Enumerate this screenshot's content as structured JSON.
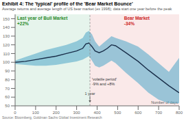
{
  "chart_data": {
    "type": "line",
    "title": "Exhibit 4: The 'typical' profile of the 'Bear Market Bounce'",
    "subtitle": "Average returns and average length of US bear market (ex 1998); data start one year before the peak",
    "source": "Source: Bloomberg, Goldman Sachs Global Investment Research",
    "xlabel": "Number of days",
    "x": [
      0,
      50,
      100,
      150,
      200,
      250,
      300,
      330,
      345,
      360,
      375,
      390,
      410,
      430,
      450,
      470,
      490,
      540,
      600,
      650,
      700,
      750,
      800
    ],
    "xlim": [
      0,
      800
    ],
    "xticks": [
      0,
      100,
      200,
      300,
      400,
      500,
      600,
      700,
      800
    ],
    "ylim": [
      50,
      155
    ],
    "yticks": [
      50,
      60,
      70,
      80,
      90,
      100,
      110,
      120,
      130,
      140,
      150
    ],
    "grid": false,
    "series": [
      {
        "type": "area",
        "color": "#5aabcc",
        "lower": [
          98,
          97,
          96,
          96,
          97,
          99,
          101,
          103,
          105,
          107,
          102,
          96,
          94,
          96,
          99,
          102,
          99,
          88,
          76,
          65,
          57,
          53,
          53
        ],
        "upper": [
          102,
          106,
          110,
          114,
          117,
          120,
          124,
          128,
          134,
          136,
          132,
          124,
          118,
          122,
          126,
          130,
          128,
          124,
          118,
          109,
          99,
          89,
          105
        ]
      },
      {
        "type": "line",
        "color": "#1a2f4a",
        "values": [
          100,
          101,
          103,
          105,
          107,
          110,
          113,
          116,
          121,
          122,
          118,
          113,
          111,
          113,
          116,
          120,
          119,
          111,
          101,
          91,
          82,
          73,
          65
        ]
      }
    ],
    "peak_x": 365,
    "regions": [
      {
        "color": "#e6f4ec",
        "label": [
          "Last year of Bull Market",
          "+22%"
        ],
        "label_color": "#2a8a2a"
      },
      {
        "color": "#fae9e9",
        "label": [
          "Bear Market",
          "-34%"
        ],
        "label_color": "#cc2222"
      }
    ],
    "volatile_label": [
      "'volatile period'",
      "-9% and +8%"
    ],
    "one_year_label": "1 year"
  }
}
